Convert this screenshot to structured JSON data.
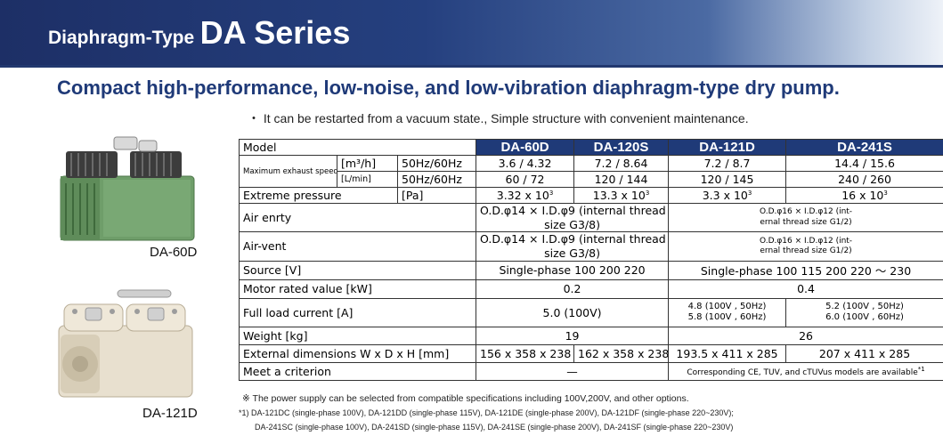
{
  "header": {
    "title_small": "Diaphragm-Type",
    "title_big": "DA Series"
  },
  "subtitle": "Compact high-performance, low-noise, and low-vibration diaphragm-type dry pump.",
  "note_top": "・ It can be restarted from a vacuum state., Simple structure with convenient maintenance.",
  "images": [
    {
      "caption": "DA-60D"
    },
    {
      "caption": "DA-121D"
    }
  ],
  "table": {
    "model_label": "Model",
    "models": [
      "DA-60D",
      "DA-120S",
      "DA-121D",
      "DA-241S"
    ],
    "max_exhaust_label": "Maximum exhaust speed",
    "unit_m3h": "[m³/h]",
    "unit_lmin": "[L/min]",
    "freq": "50Hz/60Hz",
    "m3h_values": [
      "3.6 / 4.32",
      "7.2 / 8.64",
      "7.2 / 8.7",
      "14.4 / 15.6"
    ],
    "lmin_values": [
      "60 / 72",
      "120 / 144",
      "120 / 145",
      "240 / 260"
    ],
    "extreme_label": "Extreme pressure",
    "extreme_unit": "[Pa]",
    "extreme_values": [
      "3.32 x 10",
      "13.3 x 10",
      "3.3 x 10",
      "16 x 10"
    ],
    "extreme_exp": "3",
    "air_entry_label": "Air enrty",
    "air_vent_label": "Air-vent",
    "port_small_line1": "O.D.φ14 × I.D.φ9 (internal thread",
    "port_small_line2": "size G3/8)",
    "port_large_line1": "O.D.φ16 × I.D.φ12 (int-",
    "port_large_line2": "ernal thread size G1/2)",
    "source_label": "Source [V]",
    "source_small": "Single-phase 100 200 220",
    "source_large": "Single-phase 100 115 200 220 ～ 230",
    "motor_label": "Motor rated value [kW]",
    "motor_small": "0.2",
    "motor_large": "0.4",
    "current_label": "Full load current [A]",
    "current_small": "5.0 (100V)",
    "current_121_line1": "4.8 (100V , 50Hz)",
    "current_121_line2": "5.8 (100V , 60Hz)",
    "current_241_line1": "5.2 (100V , 50Hz)",
    "current_241_line2": "6.0 (100V , 60Hz)",
    "weight_label": "Weight [kg]",
    "weight_small": "19",
    "weight_large": "26",
    "dims_label": "External dimensions W x D x H [mm]",
    "dims_values": [
      "156 x 358 x 238",
      "162 x 358 x 238",
      "193.5 x 411 x 285",
      "207 x 411 x 285"
    ],
    "criterion_label": "Meet a criterion",
    "criterion_small": "—",
    "criterion_large": "Corresponding CE, TUV, and cTUVus models are available",
    "criterion_mark": "*1"
  },
  "footnotes": {
    "power": "※ The power supply can be selected from compatible specifications including 100V,200V, and other options.",
    "line1": "*1) DA-121DC (single-phase 100V), DA-121DD (single-phase 115V), DA-121DE (single-phase 200V), DA-121DF (single-phase 220~230V);",
    "line2": "DA-241SC (single-phase 100V), DA-241SD (single-phase 115V), DA-241SE (single-phase 200V), DA-241SF (single-phase 220~230V)"
  },
  "colors": {
    "header_dark": "#1d2f66",
    "accent_blue": "#1f3a78",
    "pump_green": "#6f9e6a",
    "pump_beige": "#e8e0cf"
  }
}
